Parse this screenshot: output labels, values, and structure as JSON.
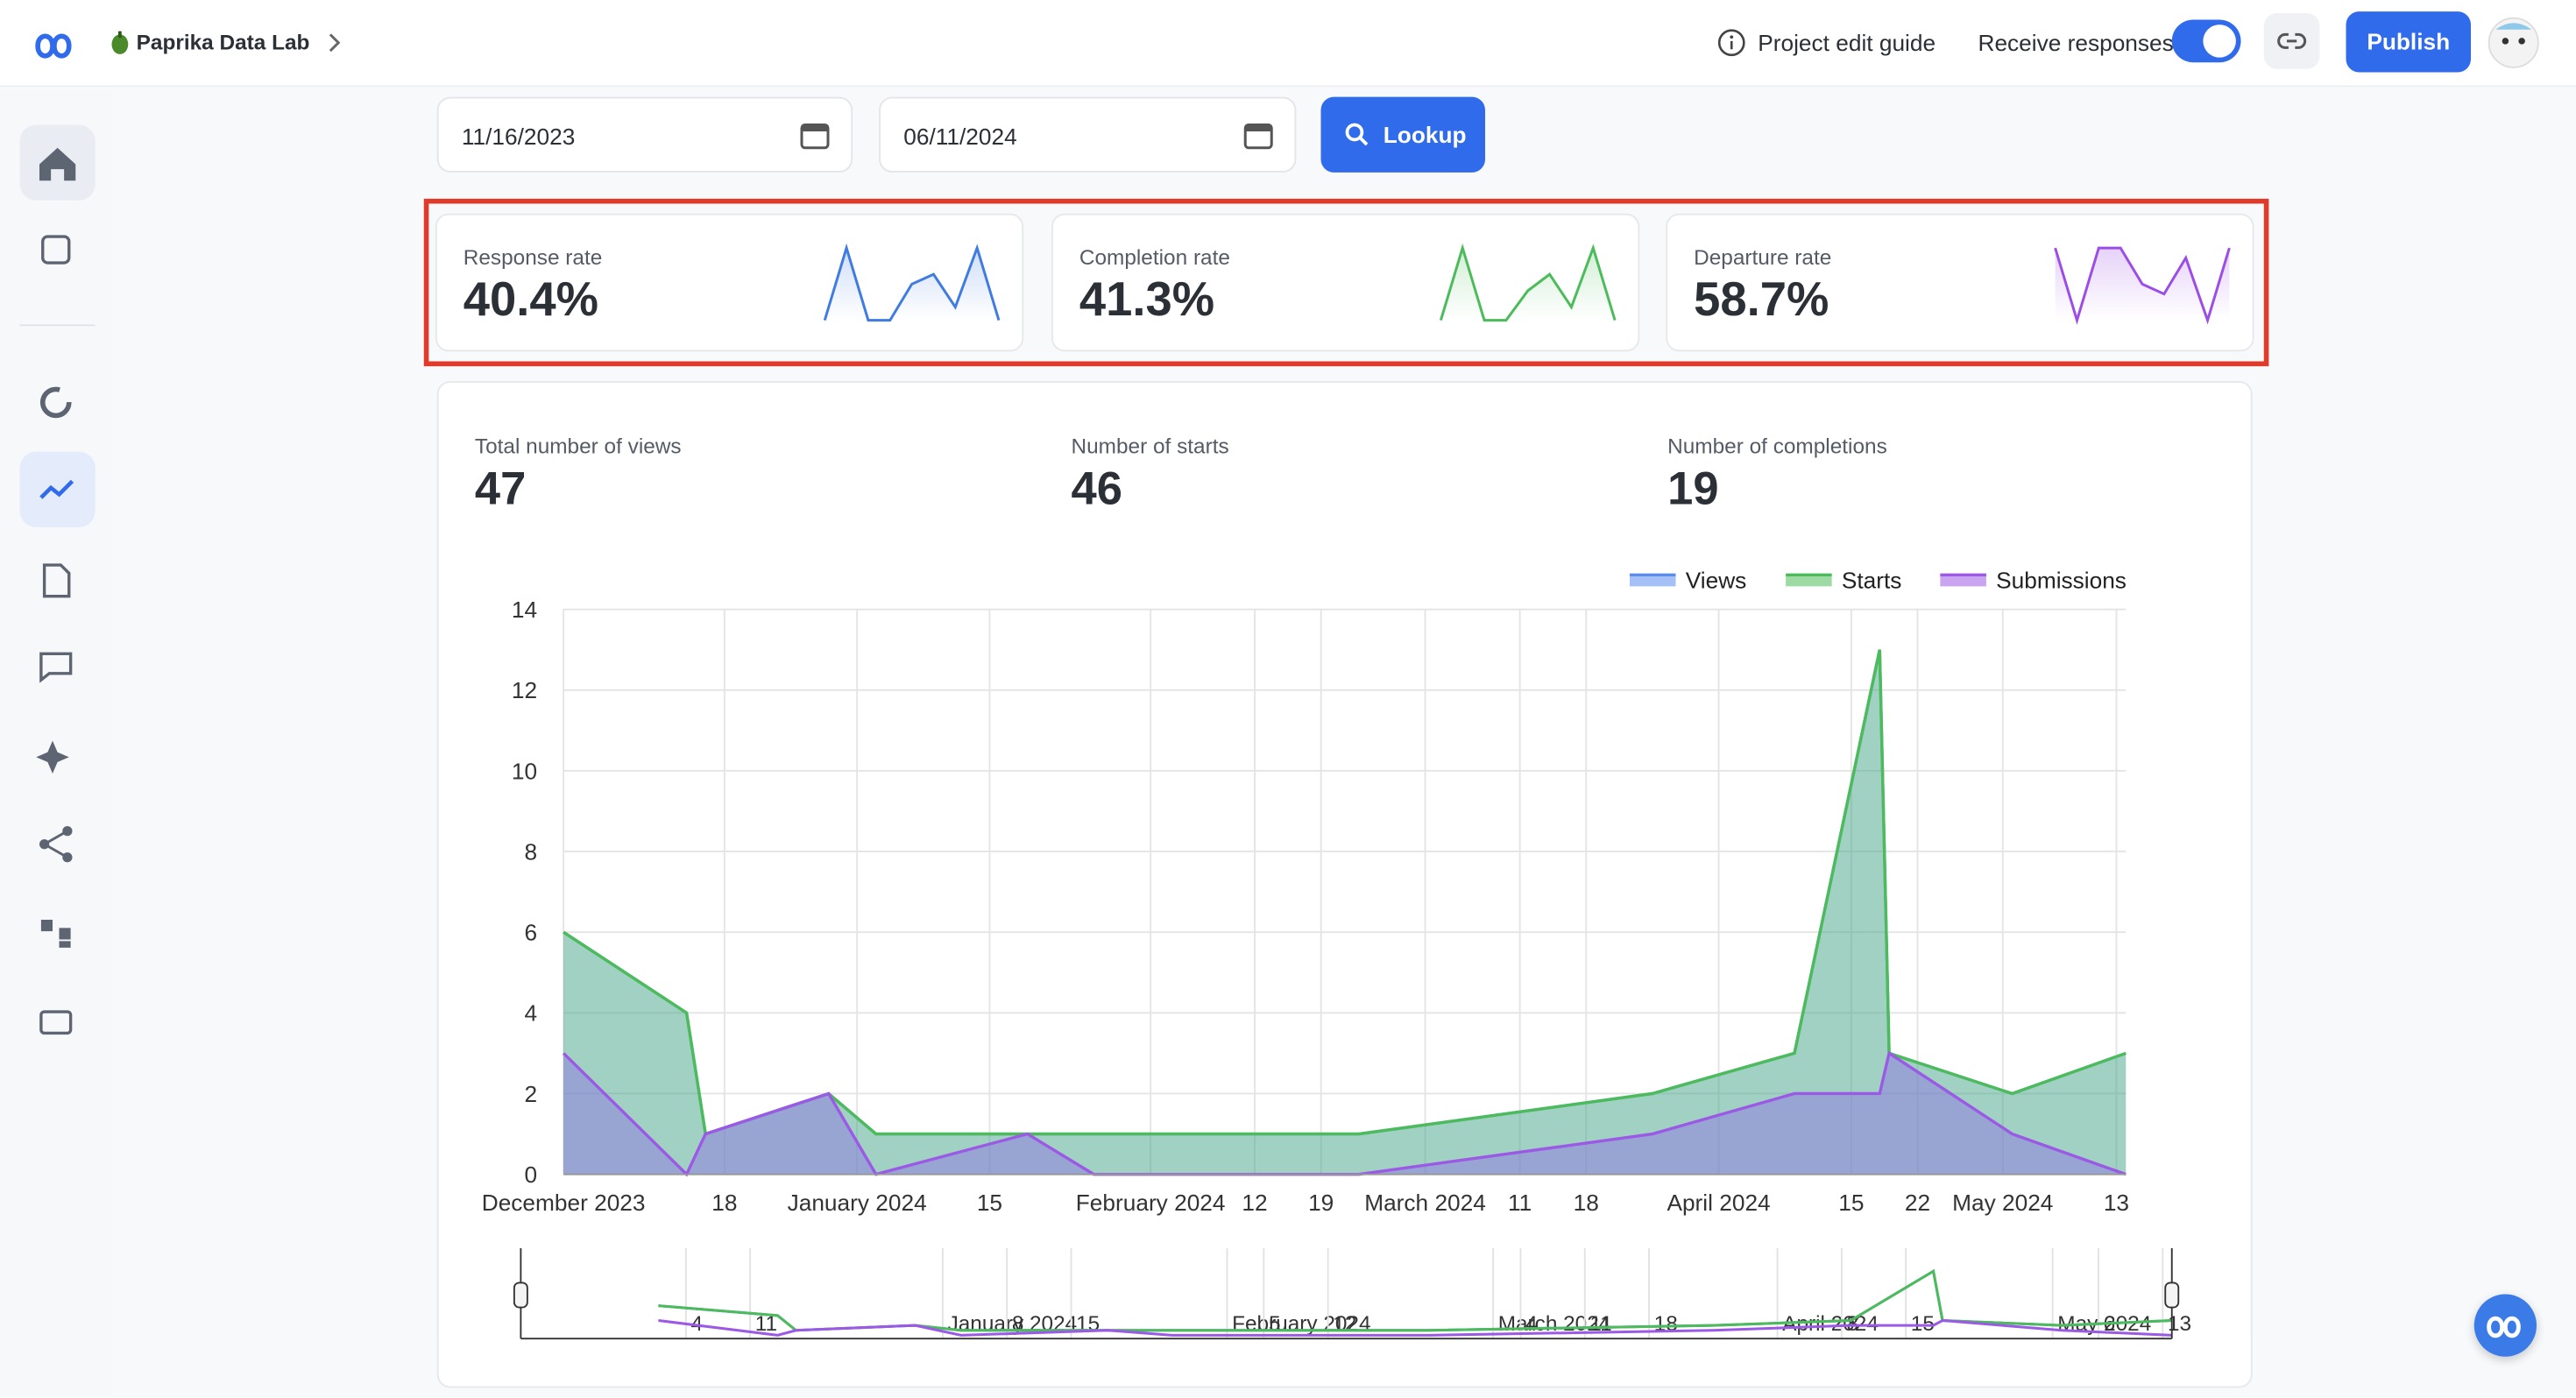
{
  "header": {
    "brand": "Paprika Data Lab",
    "guide": "Project edit guide",
    "receive": "Receive responses",
    "publish": "Publish"
  },
  "filters": {
    "start": "11/16/2023",
    "end": "06/11/2024",
    "lookup": "Lookup"
  },
  "rates": [
    {
      "label": "Response rate",
      "value": "40.4%",
      "color": "#3f7be0",
      "spark": [
        0,
        44,
        0,
        0,
        22,
        28,
        8,
        44,
        0
      ]
    },
    {
      "label": "Completion rate",
      "value": "41.3%",
      "color": "#4cbb5a",
      "spark": [
        0,
        44,
        0,
        0,
        18,
        28,
        8,
        44,
        0
      ]
    },
    {
      "label": "Departure rate",
      "value": "58.7%",
      "color": "#9b4de6",
      "spark": [
        44,
        0,
        44,
        44,
        22,
        16,
        38,
        0,
        44
      ]
    }
  ],
  "totals": [
    {
      "label": "Total number of views",
      "value": 47
    },
    {
      "label": "Number of starts",
      "value": 46
    },
    {
      "label": "Number of completions",
      "value": 19
    }
  ],
  "chart": {
    "type": "area",
    "x": [
      "2023-12-01",
      "2023-12-14",
      "2023-12-16",
      "2023-12-29",
      "2024-01-03",
      "2024-01-19",
      "2024-01-26",
      "2024-02-23",
      "2024-03-25",
      "2024-04-09",
      "2024-04-18",
      "2024-04-19",
      "2024-05-02",
      "2024-05-14"
    ],
    "series": [
      {
        "name": "Views",
        "color": "#5b8def",
        "values": [
          6,
          4,
          1,
          2,
          1,
          1,
          1,
          1,
          2,
          3,
          13,
          3,
          2,
          3
        ]
      },
      {
        "name": "Starts",
        "color": "#4cbb5a",
        "values": [
          6,
          4,
          1,
          2,
          1,
          1,
          1,
          1,
          2,
          3,
          13,
          3,
          2,
          3
        ]
      },
      {
        "name": "Submissions",
        "color": "#9b59e6",
        "values": [
          3,
          0,
          1,
          2,
          0,
          1,
          0,
          0,
          1,
          2,
          2,
          3,
          1,
          0
        ]
      }
    ],
    "xlim": [
      "2023-12-01",
      "2024-05-14"
    ],
    "xticks": [
      {
        "value": "2023-12-01",
        "label": "December 2023"
      },
      {
        "value": "2023-12-18",
        "label": "18"
      },
      {
        "value": "2024-01-01",
        "label": "January 2024"
      },
      {
        "value": "2024-01-15",
        "label": "15"
      },
      {
        "value": "2024-02-01",
        "label": "February 2024"
      },
      {
        "value": "2024-02-12",
        "label": "12"
      },
      {
        "value": "2024-02-19",
        "label": "19"
      },
      {
        "value": "2024-03-01",
        "label": "March 2024"
      },
      {
        "value": "2024-03-11",
        "label": "11"
      },
      {
        "value": "2024-03-18",
        "label": "18"
      },
      {
        "value": "2024-04-01",
        "label": "April 2024"
      },
      {
        "value": "2024-04-15",
        "label": "15"
      },
      {
        "value": "2024-04-22",
        "label": "22"
      },
      {
        "value": "2024-05-01",
        "label": "May 2024"
      },
      {
        "value": "2024-05-13",
        "label": "13"
      }
    ],
    "ylim": [
      0,
      14
    ],
    "yticks": [
      0,
      2,
      4,
      6,
      8,
      10,
      12,
      14
    ],
    "grid": true,
    "legend": "top-right",
    "navigator": {
      "xlim": [
        "2023-11-16",
        "2024-05-14"
      ],
      "xticks": [
        {
          "value": "2023-12-04",
          "label": "4"
        },
        {
          "value": "2023-12-11",
          "label": "11"
        },
        {
          "value": "2024-01-01",
          "label": "January 2024"
        },
        {
          "value": "2024-01-08",
          "label": "8"
        },
        {
          "value": "2024-01-15",
          "label": "15"
        },
        {
          "value": "2024-02-01",
          "label": "February 2024"
        },
        {
          "value": "2024-02-05",
          "label": "5"
        },
        {
          "value": "2024-02-12",
          "label": "12"
        },
        {
          "value": "2024-03-01",
          "label": "March 2024"
        },
        {
          "value": "2024-03-04",
          "label": "4"
        },
        {
          "value": "2024-03-11",
          "label": "11"
        },
        {
          "value": "2024-03-18",
          "label": "18"
        },
        {
          "value": "2024-04-01",
          "label": "April 2024"
        },
        {
          "value": "2024-04-08",
          "label": "8"
        },
        {
          "value": "2024-04-15",
          "label": "15"
        },
        {
          "value": "2024-05-01",
          "label": "May 2024"
        },
        {
          "value": "2024-05-06",
          "label": "6"
        },
        {
          "value": "2024-05-13",
          "label": "13"
        }
      ]
    }
  }
}
